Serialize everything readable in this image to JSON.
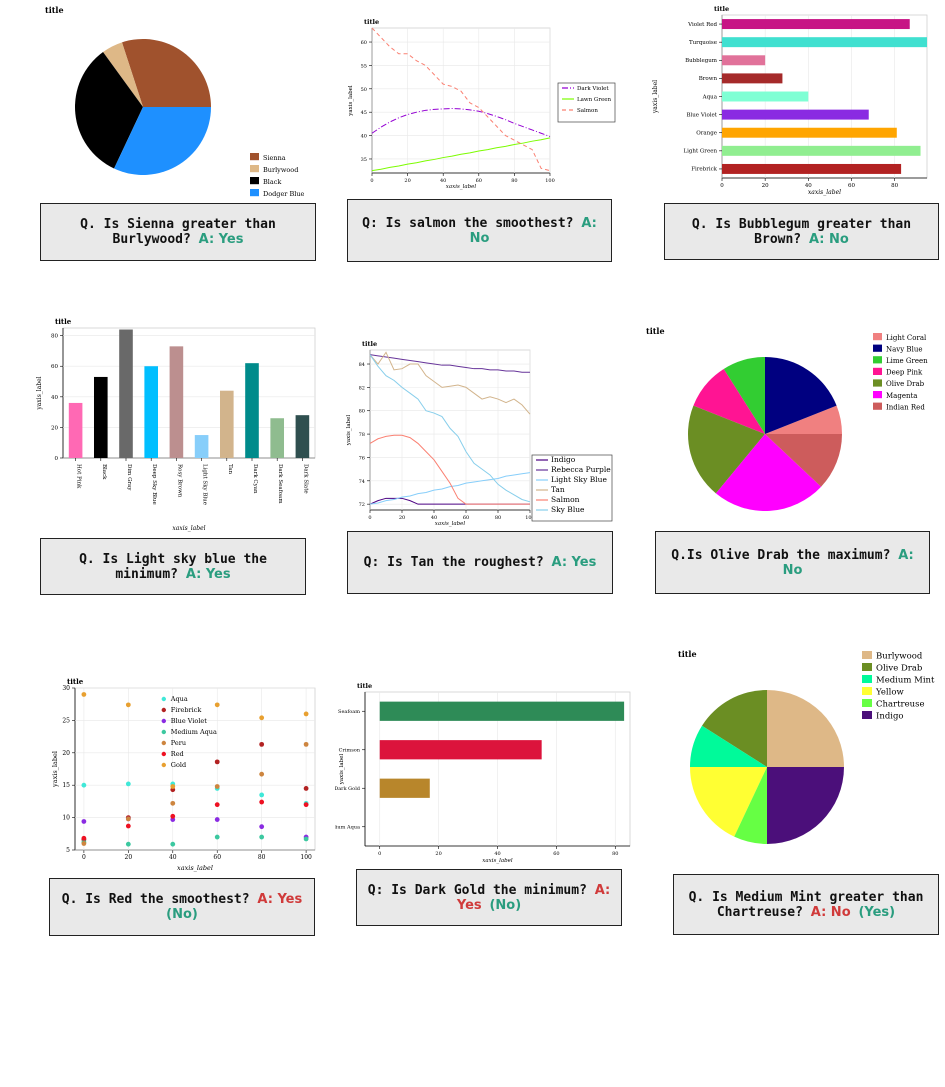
{
  "panels": [
    {
      "qa_prefix": "Q. Is Sienna greater than Burlywood?",
      "answer": "A: Yes",
      "answer_color": "#2a9d7f",
      "answer_correct": ""
    },
    {
      "qa_prefix": "Q:  Is salmon the smoothest?",
      "answer": "A: No",
      "answer_color": "#2a9d7f",
      "answer_correct": ""
    },
    {
      "qa_prefix": "Q. Is Bubblegum greater than Brown?",
      "answer": "A: No",
      "answer_color": "#2a9d7f",
      "answer_correct": ""
    },
    {
      "qa_prefix": "Q. Is Light sky blue the minimum?",
      "answer": "A: Yes",
      "answer_color": "#2a9d7f",
      "answer_correct": ""
    },
    {
      "qa_prefix": "Q:  Is Tan the roughest?",
      "answer": "A: Yes",
      "answer_color": "#2a9d7f",
      "answer_correct": ""
    },
    {
      "qa_prefix": "Q.Is Olive Drab the maximum?",
      "answer": "A: No",
      "answer_color": "#2a9d7f",
      "answer_correct": ""
    },
    {
      "qa_prefix": "Q. Is Red the smoothest?",
      "answer": "A: Yes",
      "answer_color": "#d03a3a",
      "answer_correct": "(No)"
    },
    {
      "qa_prefix": "Q:  Is Dark Gold the minimum?",
      "answer": "A: Yes",
      "answer_color": "#d03a3a",
      "answer_correct": "(No)"
    },
    {
      "qa_prefix": "Q. Is Medium Mint greater than Chartreuse?",
      "answer": "A: No",
      "answer_color": "#d03a3a",
      "answer_correct": "(Yes)"
    }
  ],
  "chart_data": [
    {
      "type": "pie",
      "title": "title",
      "slices": [
        {
          "label": "Sienna",
          "value": 30,
          "color": "#a0522d"
        },
        {
          "label": "Burlywood",
          "value": 5,
          "color": "#deb887"
        },
        {
          "label": "Black",
          "value": 33,
          "color": "#000000"
        },
        {
          "label": "Dodger Blue",
          "value": 32,
          "color": "#1e90ff"
        }
      ],
      "start_angle_deg": 0,
      "direction": "ccw",
      "legend_position": "bottom-right"
    },
    {
      "type": "line",
      "title": "title",
      "xlabel": "xaxis_label",
      "ylabel": "yaxis_label",
      "xlim": [
        0,
        100
      ],
      "ylim": [
        32,
        63
      ],
      "xticks": [
        0,
        20,
        40,
        60,
        80,
        100
      ],
      "yticks": [
        35,
        40,
        45,
        50,
        55,
        60
      ],
      "x": [
        0,
        5,
        10,
        15,
        20,
        25,
        30,
        35,
        40,
        45,
        50,
        55,
        60,
        65,
        70,
        75,
        80,
        85,
        90,
        95,
        100
      ],
      "series": [
        {
          "name": "Dark Violet",
          "color": "#9400d3",
          "dash": "6,2,1,2",
          "values": [
            40.5,
            41.8,
            42.9,
            43.8,
            44.5,
            45.0,
            45.4,
            45.6,
            45.7,
            45.8,
            45.7,
            45.5,
            45.2,
            44.7,
            44.1,
            43.4,
            42.6,
            41.9,
            41.2,
            40.5,
            39.8
          ]
        },
        {
          "name": "Lawn Green",
          "color": "#7cfc00",
          "dash": "",
          "values": [
            32.5,
            32.8,
            33.2,
            33.5,
            33.9,
            34.2,
            34.6,
            34.9,
            35.3,
            35.6,
            36.0,
            36.3,
            36.7,
            37.0,
            37.4,
            37.7,
            38.1,
            38.4,
            38.8,
            39.1,
            39.5
          ]
        },
        {
          "name": "Salmon",
          "color": "#fa8072",
          "dash": "4,3",
          "values": [
            63.0,
            61.0,
            59.0,
            57.5,
            57.5,
            56.0,
            55.0,
            53.0,
            51.0,
            50.5,
            49.5,
            47.0,
            46.0,
            44.0,
            42.0,
            40.0,
            39.0,
            38.0,
            37.0,
            33.0,
            32.5
          ]
        }
      ],
      "legend_position": "right"
    },
    {
      "type": "bar",
      "orientation": "horizontal",
      "title": "title",
      "xlabel": "xaxis_label",
      "ylabel": "yaxis_label",
      "xlim": [
        0,
        95
      ],
      "xticks": [
        0,
        20,
        40,
        60,
        80
      ],
      "categories": [
        "Violet Red",
        "Turquoise",
        "Bubblegum",
        "Brown",
        "Aqua",
        "Blue Violet",
        "Orange",
        "Light Green",
        "Firebrick"
      ],
      "values": [
        87,
        95,
        20,
        28,
        40,
        68,
        81,
        92,
        83
      ],
      "colors": [
        "#c71585",
        "#40e0d0",
        "#e1729a",
        "#a52a2a",
        "#7fffd4",
        "#8a2be2",
        "#ffa500",
        "#90ee90",
        "#b22222"
      ]
    },
    {
      "type": "bar",
      "title": "title",
      "xlabel": "xaxis_label",
      "ylabel": "yaxis_label",
      "ylim": [
        0,
        85
      ],
      "yticks": [
        0,
        20,
        40,
        60,
        80
      ],
      "categories": [
        "Hot Pink",
        "Black",
        "Dim Gray",
        "Deep Sky Blue",
        "Rosy Brown",
        "Light Sky Blue",
        "Tan",
        "Dark Cyan",
        "Dark Seafoam",
        "Dark Slate"
      ],
      "values": [
        36,
        53,
        84,
        60,
        73,
        15,
        44,
        62,
        26,
        28
      ],
      "colors": [
        "#ff69b4",
        "#000000",
        "#696969",
        "#00bfff",
        "#bc8f8f",
        "#87cefa",
        "#d2b48c",
        "#008b8b",
        "#8fbc8f",
        "#2f4f4f"
      ]
    },
    {
      "type": "line",
      "title": "title",
      "xlabel": "xaxis_label",
      "ylabel": "yaxis_label",
      "xlim": [
        0,
        100
      ],
      "ylim": [
        71.5,
        85.2
      ],
      "xticks": [
        0,
        20,
        40,
        60,
        80,
        100
      ],
      "yticks": [
        72,
        74,
        76,
        78,
        80,
        82,
        84
      ],
      "x": [
        0,
        5,
        10,
        15,
        20,
        25,
        30,
        35,
        40,
        45,
        50,
        55,
        60,
        65,
        70,
        75,
        80,
        85,
        90,
        95,
        100
      ],
      "series": [
        {
          "name": "Indigo",
          "color": "#4b0082",
          "values": [
            72,
            72.3,
            72.5,
            72.5,
            72.5,
            72.3,
            72.0,
            72.0,
            72.0,
            72.0,
            72.0,
            72.0,
            72.0,
            72.0,
            72.0,
            72.0,
            72.0,
            72.0,
            72.0,
            72.0,
            72.0
          ]
        },
        {
          "name": "Rebecca Purple",
          "color": "#663399",
          "values": [
            84.8,
            84.7,
            84.6,
            84.5,
            84.4,
            84.3,
            84.2,
            84.1,
            84.0,
            83.9,
            83.9,
            83.8,
            83.7,
            83.6,
            83.6,
            83.5,
            83.5,
            83.4,
            83.4,
            83.3,
            83.3
          ]
        },
        {
          "name": "Light Sky Blue",
          "color": "#87cefa",
          "values": [
            72.0,
            72.1,
            72.3,
            72.4,
            72.6,
            72.7,
            72.9,
            73.0,
            73.2,
            73.3,
            73.5,
            73.6,
            73.8,
            73.9,
            74.0,
            74.1,
            74.2,
            74.4,
            74.5,
            74.6,
            74.7
          ]
        },
        {
          "name": "Tan",
          "color": "#d2b48c",
          "values": [
            84.8,
            84.0,
            85.0,
            83.5,
            83.6,
            84.0,
            84.0,
            83.0,
            82.5,
            82.0,
            82.1,
            82.2,
            82.0,
            81.5,
            81.0,
            81.2,
            81.0,
            80.7,
            81.0,
            80.5,
            79.7
          ]
        },
        {
          "name": "Salmon",
          "color": "#fa8072",
          "values": [
            77.2,
            77.6,
            77.8,
            77.9,
            77.9,
            77.7,
            77.2,
            76.5,
            75.8,
            74.8,
            73.8,
            72.5,
            72.0,
            72.0,
            72.0,
            72.0,
            72.0,
            72.0,
            72.0,
            72.0,
            72.0
          ]
        },
        {
          "name": "Sky Blue",
          "color": "#87ceeb",
          "values": [
            84.8,
            83.8,
            83.0,
            82.6,
            82.0,
            81.5,
            81.0,
            80.0,
            79.8,
            79.5,
            78.5,
            77.8,
            76.5,
            75.5,
            75.0,
            74.5,
            73.7,
            73.2,
            72.8,
            72.4,
            72.2
          ]
        }
      ],
      "legend_position": "right"
    },
    {
      "type": "pie",
      "title": "title",
      "slices": [
        {
          "label": "Light Coral",
          "value": 6,
          "color": "#f08080"
        },
        {
          "label": "Navy Blue",
          "value": 19,
          "color": "#000080"
        },
        {
          "label": "Lime Green",
          "value": 9,
          "color": "#32cd32"
        },
        {
          "label": "Deep Pink",
          "value": 10,
          "color": "#ff1493"
        },
        {
          "label": "Olive Drab",
          "value": 20,
          "color": "#6b8e23"
        },
        {
          "label": "Magenta",
          "value": 24,
          "color": "#ff00ff"
        },
        {
          "label": "Indian Red",
          "value": 12,
          "color": "#cd5c5c"
        }
      ],
      "start_angle_deg": 0,
      "direction": "ccw",
      "legend_position": "top-right"
    },
    {
      "type": "scatter",
      "title": "title",
      "xlabel": "xaxis_label",
      "ylabel": "yaxis_label",
      "xlim": [
        -4,
        104
      ],
      "ylim": [
        5,
        30
      ],
      "xticks": [
        0,
        20,
        40,
        60,
        80,
        100
      ],
      "yticks": [
        5,
        10,
        15,
        20,
        25,
        30
      ],
      "x": [
        0,
        20,
        40,
        60,
        80,
        100
      ],
      "series": [
        {
          "name": "Aqua",
          "color": "#40e8d8",
          "values": [
            15.0,
            15.2,
            15.2,
            14.5,
            13.5,
            12.2
          ]
        },
        {
          "name": "Firebrick",
          "color": "#b22222",
          "values": [
            6.6,
            10.0,
            14.3,
            18.6,
            21.3,
            14.5
          ]
        },
        {
          "name": "Blue Violet",
          "color": "#8a2be2",
          "values": [
            9.4,
            9.8,
            9.7,
            9.7,
            8.6,
            7.0
          ]
        },
        {
          "name": "Medium Aqua",
          "color": "#3cc8a0",
          "values": [
            6.2,
            5.9,
            5.9,
            7.0,
            7.0,
            6.7
          ]
        },
        {
          "name": "Peru",
          "color": "#cd853f",
          "values": [
            6.0,
            9.8,
            12.2,
            14.8,
            16.7,
            21.3
          ]
        },
        {
          "name": "Red",
          "color": "#ee1122",
          "values": [
            6.8,
            8.7,
            10.2,
            12.0,
            12.4,
            12.0
          ]
        },
        {
          "name": "Gold",
          "color": "#e8a030",
          "values": [
            29.0,
            27.4,
            14.8,
            27.4,
            25.4,
            26.0
          ]
        }
      ],
      "legend_position": "top-center"
    },
    {
      "type": "bar",
      "orientation": "horizontal",
      "title": "title",
      "xlabel": "xaxis_label",
      "ylabel": "yaxis_label",
      "xlim": [
        -5,
        85
      ],
      "xticks": [
        0,
        20,
        40,
        60,
        80
      ],
      "categories": [
        "Seafoam",
        "Crimson",
        "Dark Gold",
        "Medium Aqua"
      ],
      "values": [
        83,
        55,
        17,
        0
      ],
      "colors": [
        "#2e8b57",
        "#dc143c",
        "#b8862b",
        "#66cdaa"
      ]
    },
    {
      "type": "pie",
      "title": "title",
      "slices": [
        {
          "label": "Burlywood",
          "value": 25,
          "color": "#deb887"
        },
        {
          "label": "Olive Drab",
          "value": 16,
          "color": "#6b8e23"
        },
        {
          "label": "Medium Mint",
          "value": 9,
          "color": "#00fa9a"
        },
        {
          "label": "Yellow",
          "value": 18,
          "color": "#ffff33"
        },
        {
          "label": "Chartreuse",
          "value": 7,
          "color": "#66ff44"
        },
        {
          "label": "Indigo",
          "value": 25,
          "color": "#4b0f7a"
        }
      ],
      "start_angle_deg": 0,
      "direction": "ccw",
      "legend_position": "top-right"
    }
  ]
}
